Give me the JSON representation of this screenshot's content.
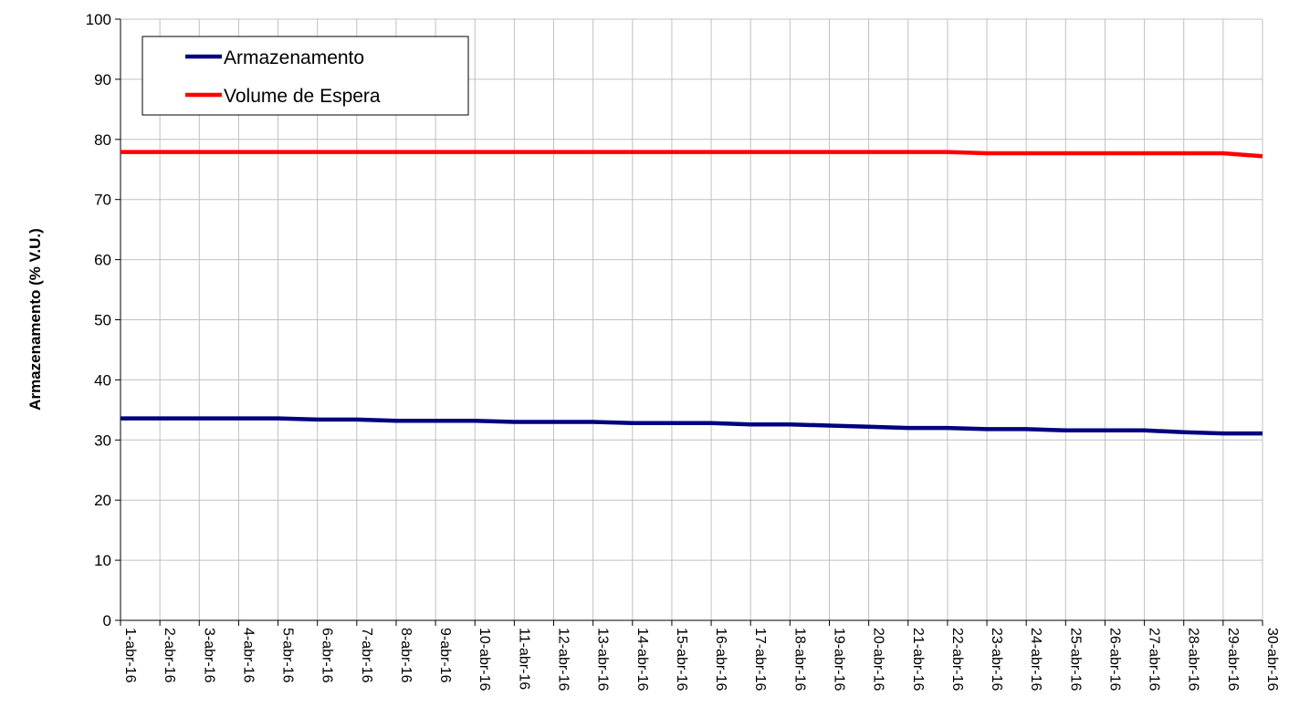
{
  "chart_data": {
    "type": "line",
    "title": "",
    "xlabel": "",
    "ylabel": "Armazenamento (% V.U.)",
    "ylim": [
      0,
      100
    ],
    "yticks": [
      0,
      10,
      20,
      30,
      40,
      50,
      60,
      70,
      80,
      90,
      100
    ],
    "grid": true,
    "legend_position": "top-left",
    "categories": [
      "1-abr-16",
      "2-abr-16",
      "3-abr-16",
      "4-abr-16",
      "5-abr-16",
      "6-abr-16",
      "7-abr-16",
      "8-abr-16",
      "9-abr-16",
      "10-abr-16",
      "11-abr-16",
      "12-abr-16",
      "13-abr-16",
      "14-abr-16",
      "15-abr-16",
      "16-abr-16",
      "17-abr-16",
      "18-abr-16",
      "19-abr-16",
      "20-abr-16",
      "21-abr-16",
      "22-abr-16",
      "23-abr-16",
      "24-abr-16",
      "25-abr-16",
      "26-abr-16",
      "27-abr-16",
      "28-abr-16",
      "29-abr-16",
      "30-abr-16"
    ],
    "series": [
      {
        "name": "Armazenamento",
        "color": "#000080",
        "values": [
          33.6,
          33.6,
          33.6,
          33.6,
          33.6,
          33.4,
          33.4,
          33.2,
          33.2,
          33.2,
          33.0,
          33.0,
          33.0,
          32.8,
          32.8,
          32.8,
          32.6,
          32.6,
          32.4,
          32.2,
          32.0,
          32.0,
          31.8,
          31.8,
          31.6,
          31.6,
          31.6,
          31.3,
          31.1,
          31.1
        ]
      },
      {
        "name": "Volume de Espera",
        "color": "#ff0000",
        "values": [
          77.9,
          77.9,
          77.9,
          77.9,
          77.9,
          77.9,
          77.9,
          77.9,
          77.9,
          77.9,
          77.9,
          77.9,
          77.9,
          77.9,
          77.9,
          77.9,
          77.9,
          77.9,
          77.9,
          77.9,
          77.9,
          77.9,
          77.7,
          77.7,
          77.7,
          77.7,
          77.7,
          77.7,
          77.7,
          77.2
        ]
      }
    ]
  }
}
